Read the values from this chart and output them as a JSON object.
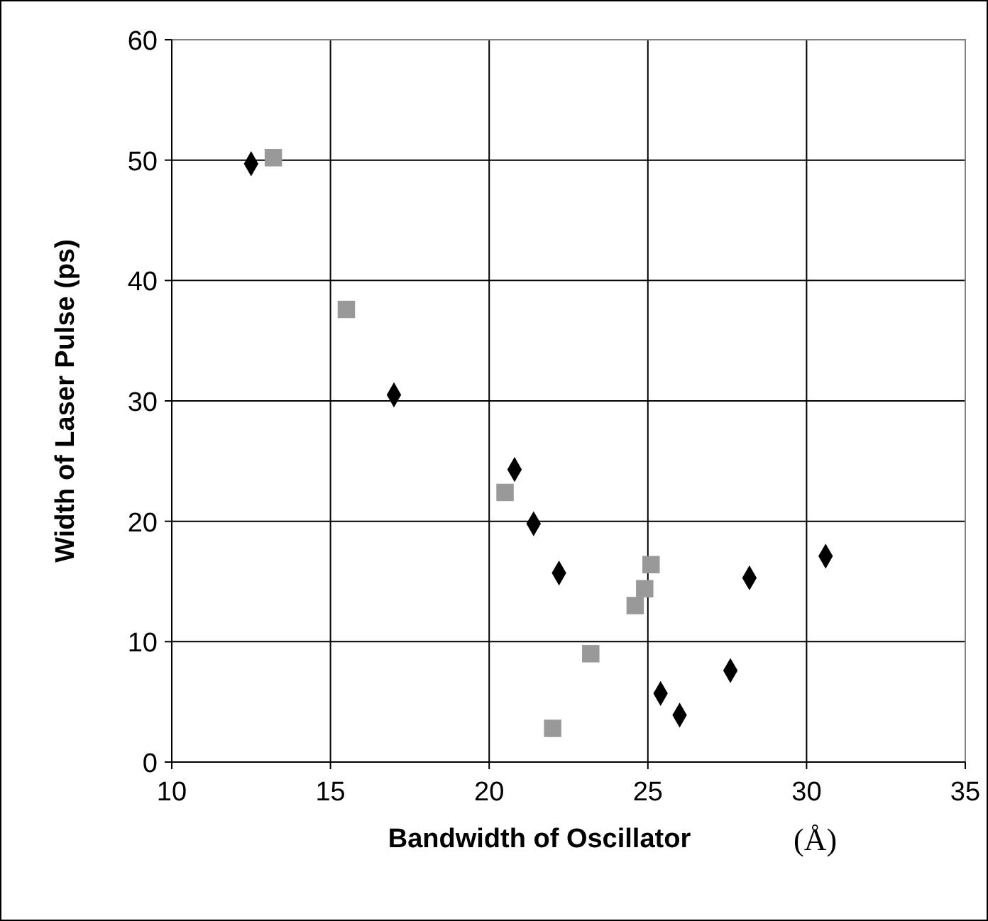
{
  "chart_data": {
    "type": "scatter",
    "xlabel": "Bandwidth of Oscillator",
    "ylabel": "Width of Laser Pulse (ps)",
    "annotations": [
      "(Å)"
    ],
    "xlim": [
      10,
      35
    ],
    "xticks": [
      10,
      15,
      20,
      25,
      30,
      35
    ],
    "ylim": [
      0,
      60
    ],
    "yticks": [
      0,
      10,
      20,
      30,
      40,
      50,
      60
    ],
    "grid": true,
    "series": [
      {
        "color": "#000000",
        "marker": "diamond",
        "x": [
          12.5,
          17,
          20.8,
          21.4,
          22.2,
          25.4,
          26,
          27.6,
          28.2,
          30.6
        ],
        "values": [
          49.7,
          30.5,
          24.3,
          19.8,
          15.7,
          5.7,
          3.9,
          7.6,
          15.3,
          17.1
        ]
      },
      {
        "color": "#999999",
        "marker": "square",
        "x": [
          13.2,
          15.5,
          20.5,
          22,
          23.2,
          24.6,
          24.9,
          25.1
        ],
        "values": [
          50.2,
          37.6,
          22.4,
          2.8,
          9,
          13,
          14.4,
          16.4
        ]
      }
    ]
  }
}
